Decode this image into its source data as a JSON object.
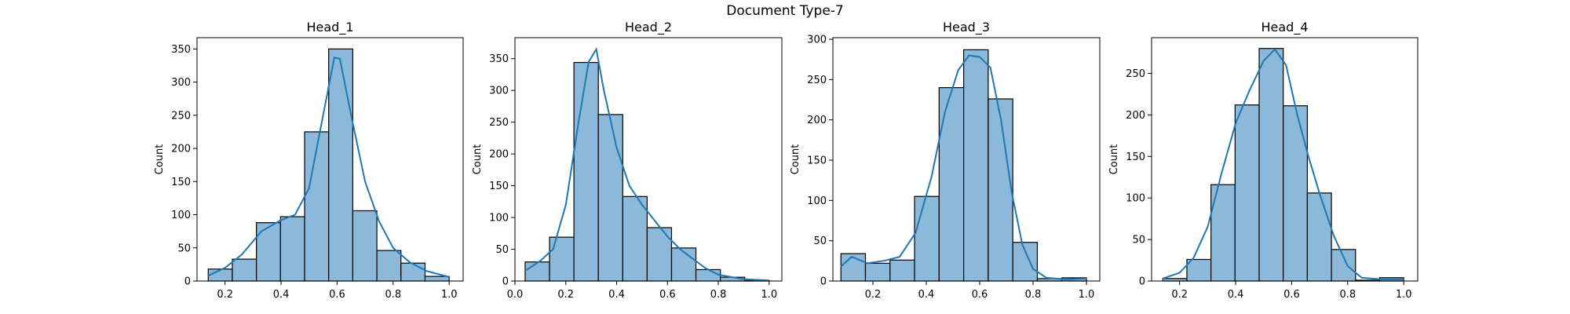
{
  "figure": {
    "suptitle": "Document Type-7"
  },
  "chart_data": [
    {
      "type": "bar",
      "title": "Head_1",
      "xlabel": "",
      "ylabel": "Count",
      "xlim": [
        0.1,
        1.05
      ],
      "ylim": [
        0,
        367
      ],
      "xticks": [
        "0.2",
        "0.4",
        "0.6",
        "0.8",
        "1.0"
      ],
      "yticks": [
        "0",
        "50",
        "100",
        "150",
        "200",
        "250",
        "300",
        "350"
      ],
      "bin_edges": [
        0.14,
        0.226,
        0.312,
        0.398,
        0.484,
        0.57,
        0.656,
        0.742,
        0.828,
        0.914,
        1.0
      ],
      "values": [
        18,
        33,
        88,
        97,
        225,
        350,
        106,
        46,
        27,
        7
      ],
      "kde": [
        [
          0.14,
          8
        ],
        [
          0.2,
          20
        ],
        [
          0.26,
          40
        ],
        [
          0.33,
          75
        ],
        [
          0.4,
          92
        ],
        [
          0.45,
          100
        ],
        [
          0.5,
          140
        ],
        [
          0.55,
          250
        ],
        [
          0.59,
          337
        ],
        [
          0.61,
          335
        ],
        [
          0.65,
          250
        ],
        [
          0.7,
          150
        ],
        [
          0.75,
          90
        ],
        [
          0.8,
          50
        ],
        [
          0.86,
          28
        ],
        [
          0.92,
          15
        ],
        [
          1.0,
          6
        ]
      ],
      "bar_color": "#8cb8d9",
      "line_color": "#1f77b4"
    },
    {
      "type": "bar",
      "title": "Head_2",
      "xlabel": "",
      "ylabel": "Count",
      "xlim": [
        0.0,
        1.05
      ],
      "ylim": [
        0,
        383
      ],
      "xticks": [
        "0.0",
        "0.2",
        "0.4",
        "0.6",
        "0.8",
        "1.0"
      ],
      "yticks": [
        "0",
        "50",
        "100",
        "150",
        "200",
        "250",
        "300",
        "350"
      ],
      "bin_edges": [
        0.04,
        0.136,
        0.232,
        0.328,
        0.424,
        0.52,
        0.616,
        0.712,
        0.808,
        0.904,
        1.0
      ],
      "values": [
        30,
        69,
        344,
        262,
        133,
        84,
        52,
        18,
        6,
        1
      ],
      "kde": [
        [
          0.04,
          16
        ],
        [
          0.1,
          32
        ],
        [
          0.15,
          50
        ],
        [
          0.2,
          120
        ],
        [
          0.25,
          250
        ],
        [
          0.29,
          345
        ],
        [
          0.32,
          365
        ],
        [
          0.35,
          300
        ],
        [
          0.4,
          210
        ],
        [
          0.45,
          150
        ],
        [
          0.5,
          120
        ],
        [
          0.55,
          95
        ],
        [
          0.6,
          70
        ],
        [
          0.65,
          50
        ],
        [
          0.7,
          35
        ],
        [
          0.75,
          20
        ],
        [
          0.8,
          10
        ],
        [
          0.9,
          3
        ],
        [
          1.0,
          1
        ]
      ],
      "bar_color": "#8cb8d9",
      "line_color": "#1f77b4"
    },
    {
      "type": "bar",
      "title": "Head_3",
      "xlabel": "",
      "ylabel": "Count",
      "xlim": [
        0.05,
        1.05
      ],
      "ylim": [
        0,
        302
      ],
      "xticks": [
        "0.2",
        "0.4",
        "0.6",
        "0.8",
        "1.0"
      ],
      "yticks": [
        "0",
        "50",
        "100",
        "150",
        "200",
        "250",
        "300"
      ],
      "bin_edges": [
        0.08,
        0.172,
        0.264,
        0.356,
        0.448,
        0.54,
        0.632,
        0.724,
        0.816,
        0.908,
        1.0
      ],
      "values": [
        34,
        22,
        26,
        105,
        240,
        287,
        226,
        48,
        3,
        4
      ],
      "kde": [
        [
          0.08,
          18
        ],
        [
          0.12,
          30
        ],
        [
          0.18,
          22
        ],
        [
          0.24,
          25
        ],
        [
          0.3,
          30
        ],
        [
          0.36,
          60
        ],
        [
          0.42,
          130
        ],
        [
          0.47,
          210
        ],
        [
          0.52,
          262
        ],
        [
          0.56,
          280
        ],
        [
          0.6,
          278
        ],
        [
          0.64,
          265
        ],
        [
          0.68,
          200
        ],
        [
          0.72,
          110
        ],
        [
          0.76,
          45
        ],
        [
          0.8,
          15
        ],
        [
          0.85,
          4
        ],
        [
          0.92,
          2
        ],
        [
          1.0,
          3
        ]
      ],
      "bar_color": "#8cb8d9",
      "line_color": "#1f77b4"
    },
    {
      "type": "bar",
      "title": "Head_4",
      "xlabel": "",
      "ylabel": "Count",
      "xlim": [
        0.1,
        1.05
      ],
      "ylim": [
        0,
        293
      ],
      "xticks": [
        "0.2",
        "0.4",
        "0.6",
        "0.8",
        "1.0"
      ],
      "yticks": [
        "0",
        "50",
        "100",
        "150",
        "200",
        "250"
      ],
      "bin_edges": [
        0.14,
        0.226,
        0.312,
        0.398,
        0.484,
        0.57,
        0.656,
        0.742,
        0.828,
        0.914,
        1.0
      ],
      "values": [
        3,
        26,
        116,
        212,
        280,
        211,
        106,
        38,
        1,
        4
      ],
      "kde": [
        [
          0.14,
          3
        ],
        [
          0.2,
          10
        ],
        [
          0.25,
          28
        ],
        [
          0.3,
          65
        ],
        [
          0.35,
          130
        ],
        [
          0.4,
          190
        ],
        [
          0.45,
          230
        ],
        [
          0.5,
          265
        ],
        [
          0.54,
          279
        ],
        [
          0.58,
          260
        ],
        [
          0.62,
          200
        ],
        [
          0.66,
          150
        ],
        [
          0.7,
          105
        ],
        [
          0.75,
          55
        ],
        [
          0.8,
          18
        ],
        [
          0.85,
          4
        ],
        [
          0.92,
          2
        ],
        [
          1.0,
          2
        ]
      ],
      "bar_color": "#8cb8d9",
      "line_color": "#1f77b4"
    }
  ]
}
